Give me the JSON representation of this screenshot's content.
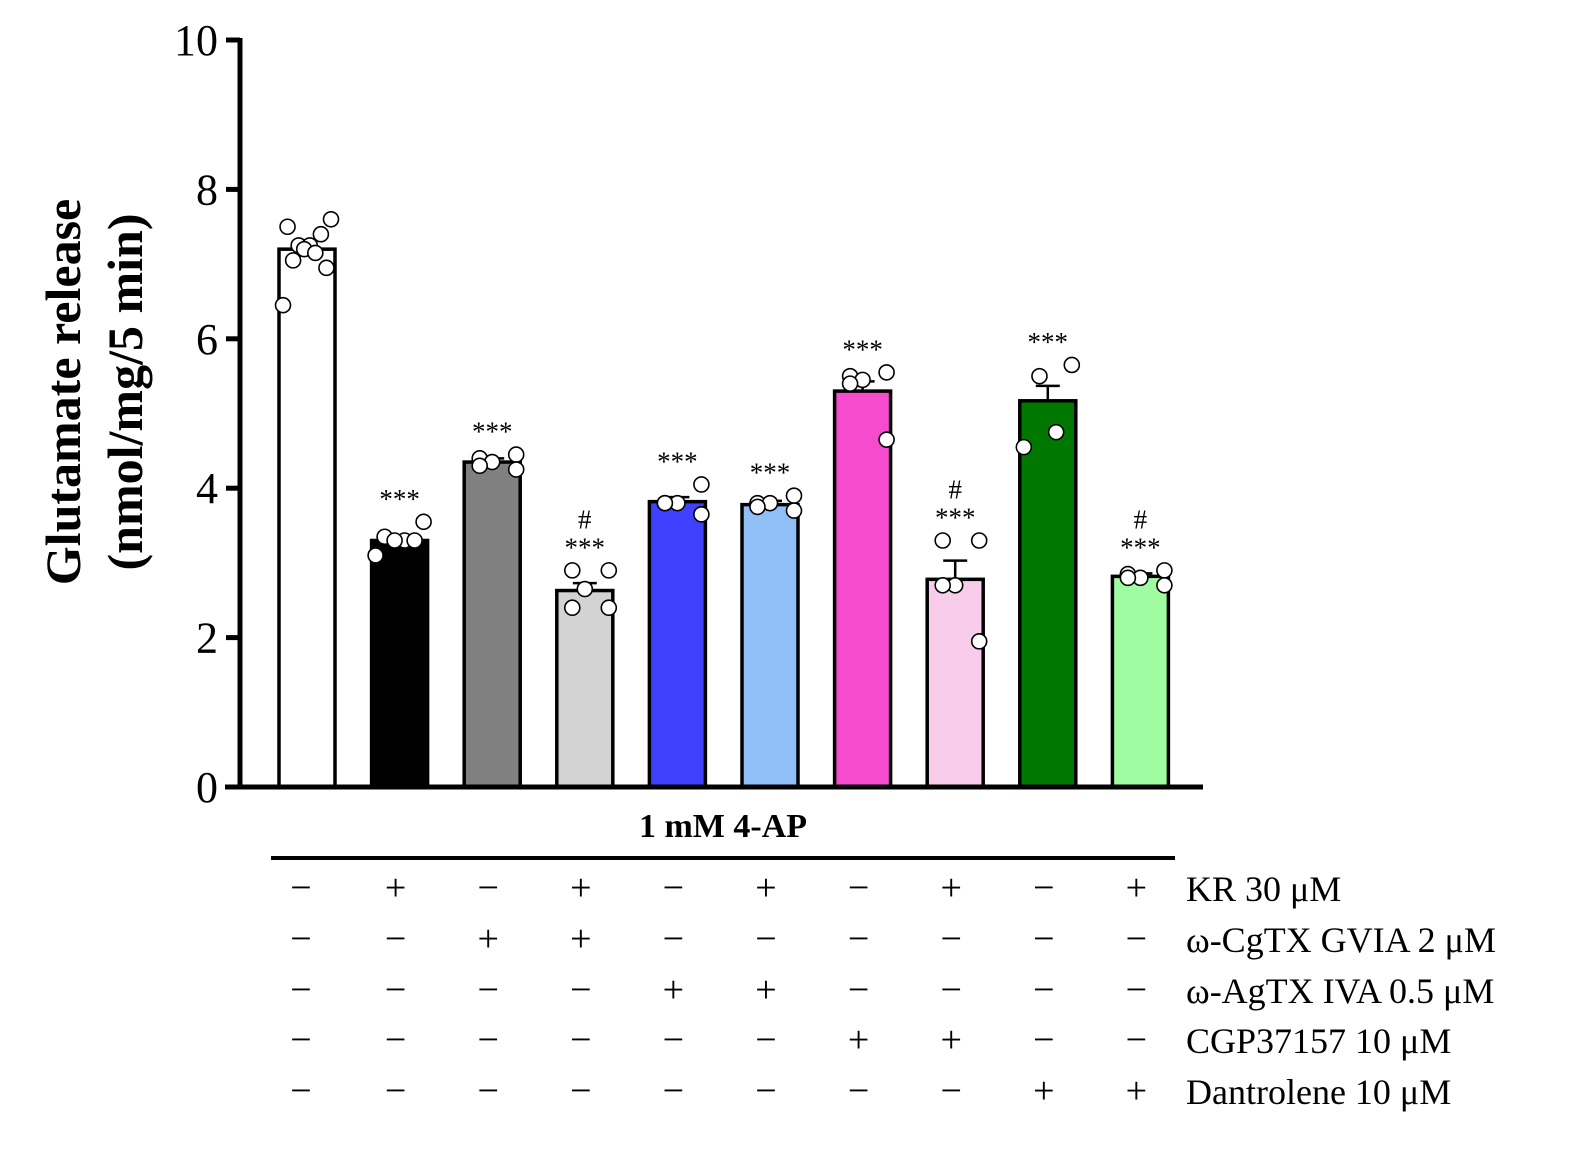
{
  "chart_data": {
    "type": "bar",
    "title": "",
    "ylabel_line1": "Glutamate release",
    "ylabel_line2": "(nmol/mg/5 min)",
    "ylim": [
      0,
      10
    ],
    "yticks": [
      "0",
      "2",
      "4",
      "6",
      "8",
      "10"
    ],
    "group_label": "1 mM 4-AP",
    "bars": [
      {
        "value": 7.2,
        "sem": 0.12,
        "color": "#ffffff",
        "sig": "",
        "hash": "",
        "points": [
          7.6,
          7.5,
          7.4,
          7.25,
          7.25,
          7.2,
          7.15,
          7.05,
          6.95,
          6.45
        ]
      },
      {
        "value": 3.3,
        "sem": 0.07,
        "color": "#000000",
        "sig": "***",
        "hash": "",
        "points": [
          3.55,
          3.35,
          3.3,
          3.3,
          3.3,
          3.1
        ]
      },
      {
        "value": 4.35,
        "sem": 0.05,
        "color": "#808080",
        "sig": "***",
        "hash": "",
        "points": [
          4.45,
          4.4,
          4.35,
          4.3,
          4.25
        ]
      },
      {
        "value": 2.63,
        "sem": 0.1,
        "color": "#d3d3d3",
        "sig": "***",
        "hash": "#",
        "points": [
          2.9,
          2.9,
          2.65,
          2.4,
          2.4
        ]
      },
      {
        "value": 3.82,
        "sem": 0.06,
        "color": "#4040ff",
        "sig": "***",
        "hash": "",
        "points": [
          4.05,
          3.8,
          3.8,
          3.8,
          3.65
        ]
      },
      {
        "value": 3.78,
        "sem": 0.05,
        "color": "#90bff8",
        "sig": "***",
        "hash": "",
        "points": [
          3.9,
          3.8,
          3.8,
          3.75,
          3.7
        ]
      },
      {
        "value": 5.3,
        "sem": 0.13,
        "color": "#f44ccc",
        "sig": "***",
        "hash": "",
        "points": [
          5.55,
          5.5,
          5.45,
          5.4,
          4.65
        ]
      },
      {
        "value": 2.78,
        "sem": 0.25,
        "color": "#f8cdec",
        "sig": "***",
        "hash": "#",
        "points": [
          3.3,
          3.3,
          2.7,
          2.7,
          1.95
        ]
      },
      {
        "value": 5.17,
        "sem": 0.2,
        "color": "#007800",
        "sig": "***",
        "hash": "",
        "points": [
          5.65,
          5.5,
          4.75,
          4.55
        ]
      },
      {
        "value": 2.82,
        "sem": 0.04,
        "color": "#a0fca0",
        "sig": "***",
        "hash": "#",
        "points": [
          2.9,
          2.85,
          2.8,
          2.8,
          2.7
        ]
      }
    ],
    "treatments": [
      {
        "label": "KR 30 μM",
        "signs": [
          "−",
          "+",
          "−",
          "+",
          "−",
          "+",
          "−",
          "+",
          "−",
          "+"
        ]
      },
      {
        "label": "ω-CgTX GVIA 2 μM",
        "signs": [
          "−",
          "−",
          "+",
          "+",
          "−",
          "−",
          "−",
          "−",
          "−",
          "−"
        ]
      },
      {
        "label": "ω-AgTX IVA 0.5 μM",
        "signs": [
          "−",
          "−",
          "−",
          "−",
          "+",
          "+",
          "−",
          "−",
          "−",
          "−"
        ]
      },
      {
        "label": "CGP37157 10 μM",
        "signs": [
          "−",
          "−",
          "−",
          "−",
          "−",
          "−",
          "+",
          "+",
          "−",
          "−"
        ]
      },
      {
        "label": "Dantrolene 10 μM",
        "signs": [
          "−",
          "−",
          "−",
          "−",
          "−",
          "−",
          "−",
          "−",
          "+",
          "+"
        ]
      }
    ]
  }
}
